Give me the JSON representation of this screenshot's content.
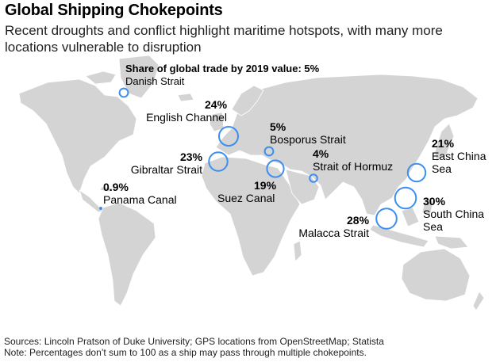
{
  "title": "Global Shipping Chokepoints",
  "subtitle": "Recent droughts and conflict highlight maritime hotspots, with many more locations vulnerable to disruption",
  "legend": {
    "title": "Share of global trade by 2019 value: 5%",
    "example": "Danish Strait"
  },
  "colors": {
    "land": "#d4d4d4",
    "marker": "#3d8ef0"
  },
  "chokepoints": [
    {
      "name": "English Channel",
      "share_label": "24%",
      "share": 24
    },
    {
      "name": "Bosporus Strait",
      "share_label": "5%",
      "share": 5
    },
    {
      "name": "Gibraltar Strait",
      "share_label": "23%",
      "share": 23
    },
    {
      "name": "Strait of Hormuz",
      "share_label": "4%",
      "share": 4
    },
    {
      "name": "East China Sea",
      "share_label": "21%",
      "share": 21
    },
    {
      "name": "Panama Canal",
      "share_label": "0.9%",
      "share": 0.9
    },
    {
      "name": "Suez Canal",
      "share_label": "19%",
      "share": 19
    },
    {
      "name": "South China Sea",
      "share_label": "30%",
      "share": 30
    },
    {
      "name": "Malacca Strait",
      "share_label": "28%",
      "share": 28
    }
  ],
  "footer": {
    "sources": "Sources: Lincoln Pratson of Duke University; GPS locations from OpenStreetMap; Statista",
    "note": "Note: Percentages don’t sum to 100 as a ship may pass through multiple chokepoints."
  }
}
